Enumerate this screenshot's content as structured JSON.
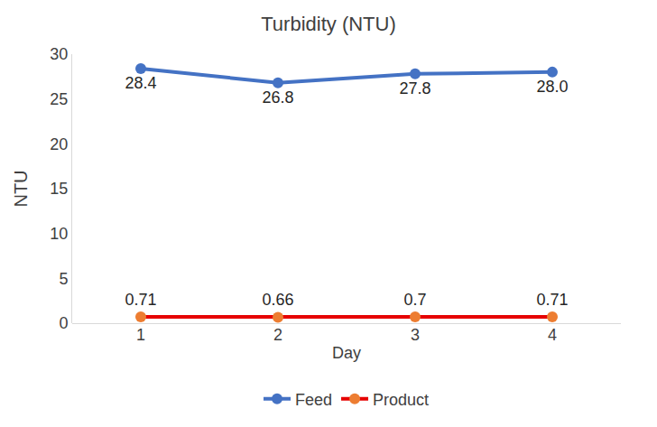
{
  "chart_data": {
    "type": "line",
    "title": "Turbidity (NTU)",
    "x_label": "Day",
    "y_label": "NTU",
    "categories": [
      "1",
      "2",
      "3",
      "4"
    ],
    "series": [
      {
        "name": "Feed",
        "color": "#4472c4",
        "marker": "circle",
        "values": [
          28.4,
          26.8,
          27.8,
          28.0
        ],
        "value_labels": [
          "28.4",
          "26.8",
          "27.8",
          "28.0"
        ]
      },
      {
        "name": "Product",
        "color": "#e60000",
        "marker": "circle",
        "values": [
          0.71,
          0.66,
          0.7,
          0.71
        ]
      }
    ],
    "ylim": [
      0,
      30
    ],
    "yticks": [
      0,
      5,
      10,
      15,
      20,
      25,
      30
    ],
    "grid": false,
    "legend": "bottom",
    "data_labels": true
  }
}
